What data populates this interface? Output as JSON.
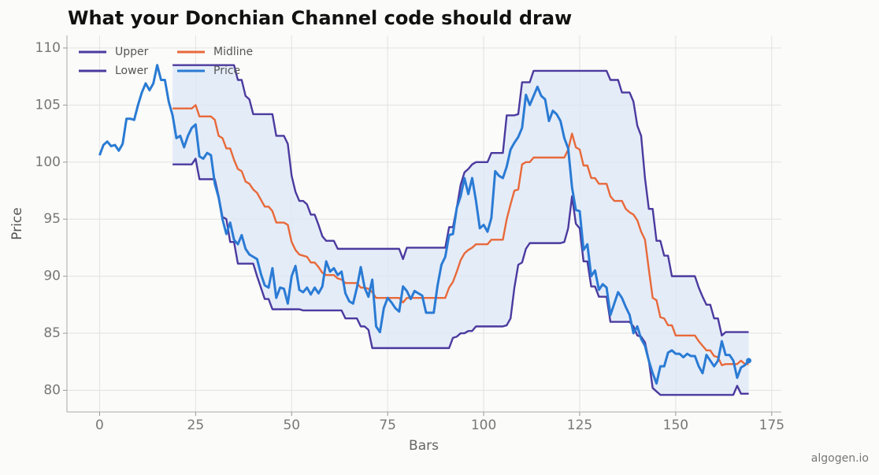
{
  "chart_data": {
    "type": "line",
    "title": "What your Donchian Channel code should draw",
    "x_label": "Bars",
    "y_label": "Price",
    "watermark": "algogen.io",
    "xlim": [
      -8.5,
      177.5
    ],
    "xticks": [
      0,
      25,
      50,
      75,
      100,
      125,
      150,
      175
    ],
    "ylim": [
      78.1,
      111.1
    ],
    "yticks": [
      80,
      85,
      90,
      95,
      100,
      105,
      110
    ],
    "grid": true,
    "legend": "upper left",
    "channel_fill": "#dce7f7",
    "last_point_marker": true,
    "series": [
      {
        "name": "Upper",
        "color": "#4b3a9f",
        "values": [
          null,
          null,
          null,
          null,
          null,
          null,
          null,
          null,
          null,
          null,
          null,
          null,
          null,
          null,
          null,
          null,
          null,
          null,
          null,
          108.5,
          108.5,
          108.5,
          108.5,
          108.5,
          108.5,
          108.5,
          108.5,
          108.5,
          108.5,
          108.5,
          108.5,
          108.5,
          108.5,
          108.5,
          108.5,
          108.5,
          107.2,
          107.2,
          105.8,
          105.5,
          104.2,
          104.2,
          104.2,
          104.2,
          104.2,
          104.2,
          102.3,
          102.3,
          102.3,
          101.6,
          98.8,
          97.4,
          96.6,
          96.6,
          96.3,
          95.4,
          95.4,
          94.5,
          93.5,
          93.1,
          93.1,
          93.1,
          92.4,
          92.4,
          92.4,
          92.4,
          92.4,
          92.4,
          92.4,
          92.4,
          92.4,
          92.4,
          92.4,
          92.4,
          92.4,
          92.4,
          92.4,
          92.4,
          92.4,
          91.5,
          92.5,
          92.5,
          92.5,
          92.5,
          92.5,
          92.5,
          92.5,
          92.5,
          92.5,
          92.5,
          92.5,
          94.3,
          94.3,
          96,
          98,
          99.1,
          99.4,
          99.8,
          100,
          100,
          100,
          100,
          100.8,
          100.8,
          100.8,
          100.8,
          104.1,
          104.1,
          104.1,
          104.2,
          107,
          107,
          107,
          108,
          108,
          108,
          108,
          108,
          108,
          108,
          108,
          108,
          108,
          108,
          108,
          108,
          108,
          108,
          108,
          108,
          108,
          108,
          108,
          107.2,
          107.2,
          107.2,
          106.1,
          106.1,
          106.1,
          105.3,
          103.2,
          102.3,
          98.6,
          95.9,
          95.9,
          93.1,
          93.1,
          91.8,
          91.8,
          90,
          90,
          90,
          90,
          90,
          90,
          90,
          89,
          88.2,
          87.5,
          87.5,
          86.3,
          86.3,
          84.8,
          85.1,
          85.1,
          85.1,
          85.1,
          85.1,
          85.1,
          85.1
        ]
      },
      {
        "name": "Lower",
        "color": "#4b3a9f",
        "values": [
          null,
          null,
          null,
          null,
          null,
          null,
          null,
          null,
          null,
          null,
          null,
          null,
          null,
          null,
          null,
          null,
          null,
          null,
          null,
          99.8,
          99.8,
          99.8,
          99.8,
          99.8,
          99.8,
          100.3,
          98.5,
          98.5,
          98.5,
          98.5,
          98.5,
          97,
          95.2,
          95,
          93,
          93,
          91.1,
          91.1,
          91.1,
          91.1,
          91.1,
          90,
          89,
          88,
          88,
          87.1,
          87.1,
          87.1,
          87.1,
          87.1,
          87.1,
          87.1,
          87.1,
          87,
          87,
          87,
          87,
          87,
          87,
          87,
          87,
          87,
          87,
          87,
          86.3,
          86.3,
          86.3,
          86.3,
          85.6,
          85.6,
          85.3,
          83.7,
          83.7,
          83.7,
          83.7,
          83.7,
          83.7,
          83.7,
          83.7,
          83.7,
          83.7,
          83.7,
          83.7,
          83.7,
          83.7,
          83.7,
          83.7,
          83.7,
          83.7,
          83.7,
          83.7,
          83.7,
          84.6,
          84.7,
          85,
          85,
          85.2,
          85.2,
          85.6,
          85.6,
          85.6,
          85.6,
          85.6,
          85.6,
          85.6,
          85.6,
          85.7,
          86.3,
          89,
          91,
          91.2,
          92.4,
          92.9,
          92.9,
          92.9,
          92.9,
          92.9,
          92.9,
          92.9,
          92.9,
          92.9,
          93,
          94.2,
          97,
          94.6,
          94.2,
          91.3,
          91.3,
          89.1,
          89.1,
          88.2,
          88.2,
          88.2,
          86,
          86,
          86,
          86,
          86,
          86,
          85.6,
          84.8,
          84.7,
          84.2,
          82.6,
          80.2,
          79.9,
          79.6,
          79.6,
          79.6,
          79.6,
          79.6,
          79.6,
          79.6,
          79.6,
          79.6,
          79.6,
          79.6,
          79.6,
          79.6,
          79.6,
          79.6,
          79.6,
          79.6,
          79.6,
          79.6,
          79.6,
          80.4,
          79.7,
          79.7,
          79.7
        ]
      },
      {
        "name": "Midline",
        "color": "#e8693a",
        "values": [
          null,
          null,
          null,
          null,
          null,
          null,
          null,
          null,
          null,
          null,
          null,
          null,
          null,
          null,
          null,
          null,
          null,
          null,
          null,
          104.7,
          104.7,
          104.7,
          104.7,
          104.7,
          104.7,
          105,
          104,
          104,
          104,
          104,
          103.7,
          102.3,
          102.1,
          101.2,
          101.2,
          100.2,
          99.4,
          99.2,
          98.3,
          98.1,
          97.6,
          97.3,
          96.7,
          96.1,
          96.1,
          95.7,
          94.7,
          94.7,
          94.7,
          94.5,
          93,
          92.3,
          91.9,
          91.8,
          91.7,
          91.2,
          91.2,
          90.8,
          90.3,
          90.1,
          90.1,
          90.1,
          89.8,
          89.7,
          89.4,
          89.4,
          89.4,
          89.4,
          89,
          89,
          88.9,
          88.6,
          88.1,
          88.1,
          88.1,
          88.1,
          88.1,
          88.1,
          88.1,
          87.7,
          88.1,
          88.1,
          88.1,
          88.1,
          88.1,
          88.1,
          88.1,
          88.1,
          88.1,
          88.1,
          88.1,
          89,
          89.5,
          90.4,
          91.4,
          92,
          92.3,
          92.5,
          92.8,
          92.8,
          92.8,
          92.8,
          93.2,
          93.2,
          93.2,
          93.2,
          95,
          96.3,
          97.5,
          97.6,
          99.8,
          100,
          100,
          100.4,
          100.4,
          100.4,
          100.4,
          100.4,
          100.4,
          100.4,
          100.4,
          100.4,
          101.1,
          102.5,
          101.3,
          101.1,
          99.7,
          99.7,
          98.6,
          98.6,
          98.1,
          98.1,
          98.1,
          97,
          96.6,
          96.6,
          96.6,
          95.9,
          95.6,
          95.4,
          94.9,
          93.9,
          93.2,
          90.6,
          88.1,
          87.9,
          86.4,
          86.3,
          85.7,
          85.7,
          84.8,
          84.8,
          84.8,
          84.8,
          84.8,
          84.8,
          84.3,
          83.9,
          83.5,
          83.5,
          83,
          82.9,
          82.2,
          82.3,
          82.3,
          82.3,
          82.3,
          82.6,
          82.3,
          82.3
        ]
      },
      {
        "name": "Price",
        "color": "#2a7bd4",
        "values": [
          100.6,
          101.5,
          101.8,
          101.4,
          101.5,
          101,
          101.6,
          103.8,
          103.8,
          103.7,
          105,
          106.1,
          106.9,
          106.3,
          106.9,
          108.5,
          107.2,
          107.2,
          105.3,
          104.1,
          102.1,
          102.3,
          101.3,
          102.3,
          103,
          103.3,
          100.5,
          100.3,
          100.8,
          100.6,
          98.1,
          96.9,
          95,
          93.7,
          94.7,
          93.2,
          92.8,
          93.6,
          92.4,
          91.9,
          91.7,
          91.5,
          90.2,
          89.2,
          89,
          90.7,
          88.1,
          89,
          88.9,
          87.6,
          90,
          90.9,
          88.8,
          88.6,
          89,
          88.4,
          89,
          88.5,
          89.1,
          91.3,
          90.4,
          90.7,
          90.1,
          90.4,
          88.5,
          87.8,
          87.6,
          89,
          90.8,
          89,
          88.2,
          89.7,
          85.6,
          85.1,
          87.2,
          88.1,
          87.7,
          87.2,
          86.9,
          89.1,
          88.7,
          88,
          88.7,
          88.5,
          88.3,
          86.8,
          86.8,
          86.8,
          89.2,
          91,
          91.7,
          93.6,
          93.7,
          96,
          97,
          98.6,
          97.2,
          98.6,
          96.6,
          94.2,
          94.5,
          93.9,
          95.1,
          99.2,
          98.8,
          98.6,
          99.6,
          101.1,
          101.7,
          102.2,
          103,
          105.9,
          105,
          105.8,
          106.6,
          105.8,
          105.5,
          103.6,
          104.5,
          104.2,
          103.6,
          102.1,
          101.2,
          97.8,
          95.8,
          95.7,
          92.3,
          92.8,
          90,
          90.5,
          88.8,
          89.3,
          89,
          86.6,
          87.6,
          88.6,
          88.1,
          87.3,
          86.6,
          85,
          85.6,
          84.5,
          83.9,
          82.6,
          81.5,
          80.6,
          82.1,
          82.1,
          83.3,
          83.5,
          83.2,
          83.2,
          82.9,
          83.2,
          83,
          83,
          82.1,
          81.5,
          83.1,
          82.6,
          82.1,
          82.6,
          84.3,
          83.1,
          83.1,
          82.6,
          81.1,
          82,
          82.2,
          82.6
        ]
      }
    ]
  }
}
